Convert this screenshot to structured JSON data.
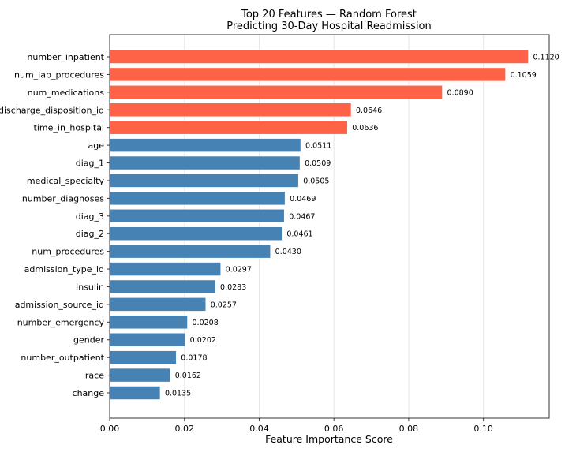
{
  "chart_data": {
    "type": "bar",
    "orientation": "horizontal",
    "title": "Top 20 Features — Random Forest\nPredicting 30-Day Hospital Readmission",
    "title_lines": [
      "Top 20 Features — Random Forest",
      "Predicting 30-Day Hospital Readmission"
    ],
    "xlabel": "Feature Importance Score",
    "ylabel": "",
    "xlim": [
      0,
      0.1176
    ],
    "xticks": [
      0.0,
      0.02,
      0.04,
      0.06,
      0.08,
      0.1
    ],
    "xtick_labels": [
      "0.00",
      "0.02",
      "0.04",
      "0.06",
      "0.08",
      "0.10"
    ],
    "grid": "x-axis vertical gridlines",
    "categories": [
      "number_inpatient",
      "num_lab_procedures",
      "num_medications",
      "discharge_disposition_id",
      "time_in_hospital",
      "age",
      "diag_1",
      "medical_specialty",
      "number_diagnoses",
      "diag_3",
      "diag_2",
      "num_procedures",
      "admission_type_id",
      "insulin",
      "admission_source_id",
      "number_emergency",
      "gender",
      "number_outpatient",
      "race",
      "change"
    ],
    "values": [
      0.112,
      0.1059,
      0.089,
      0.0646,
      0.0636,
      0.0511,
      0.0509,
      0.0505,
      0.0469,
      0.0467,
      0.0461,
      0.043,
      0.0297,
      0.0283,
      0.0257,
      0.0208,
      0.0202,
      0.0178,
      0.0162,
      0.0135
    ],
    "value_labels": [
      "0.1120",
      "0.1059",
      "0.0890",
      "0.0646",
      "0.0636",
      "0.0511",
      "0.0509",
      "0.0505",
      "0.0469",
      "0.0467",
      "0.0461",
      "0.0430",
      "0.0297",
      "0.0283",
      "0.0257",
      "0.0208",
      "0.0202",
      "0.0178",
      "0.0162",
      "0.0135"
    ],
    "highlight_top_n": 5,
    "colors": {
      "highlight": "#FF6347",
      "default": "#4682B4"
    }
  }
}
